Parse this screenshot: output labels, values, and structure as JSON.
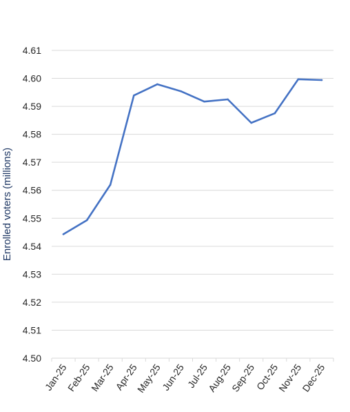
{
  "chart_data": {
    "type": "line",
    "title": "",
    "xlabel": "",
    "ylabel": "Enrolled voters (millions)",
    "ylim": [
      4.5,
      4.61
    ],
    "y_ticks": [
      "4.50",
      "4.51",
      "4.52",
      "4.53",
      "4.54",
      "4.55",
      "4.56",
      "4.57",
      "4.58",
      "4.59",
      "4.60",
      "4.61"
    ],
    "grid": true,
    "legend": "none",
    "categories": [
      "Jan-25",
      "Feb-25",
      "Mar-25",
      "Apr-25",
      "May-25",
      "Jun-25",
      "Jul-25",
      "Aug-25",
      "Sep-25",
      "Oct-25",
      "Nov-25",
      "Dec-25"
    ],
    "series": [
      {
        "values": [
          4.5443,
          4.5493,
          4.562,
          4.5939,
          4.5979,
          4.5954,
          4.5917,
          4.5925,
          4.5841,
          4.5875,
          4.5997,
          4.5994
        ],
        "color": "#4472c4"
      }
    ]
  }
}
